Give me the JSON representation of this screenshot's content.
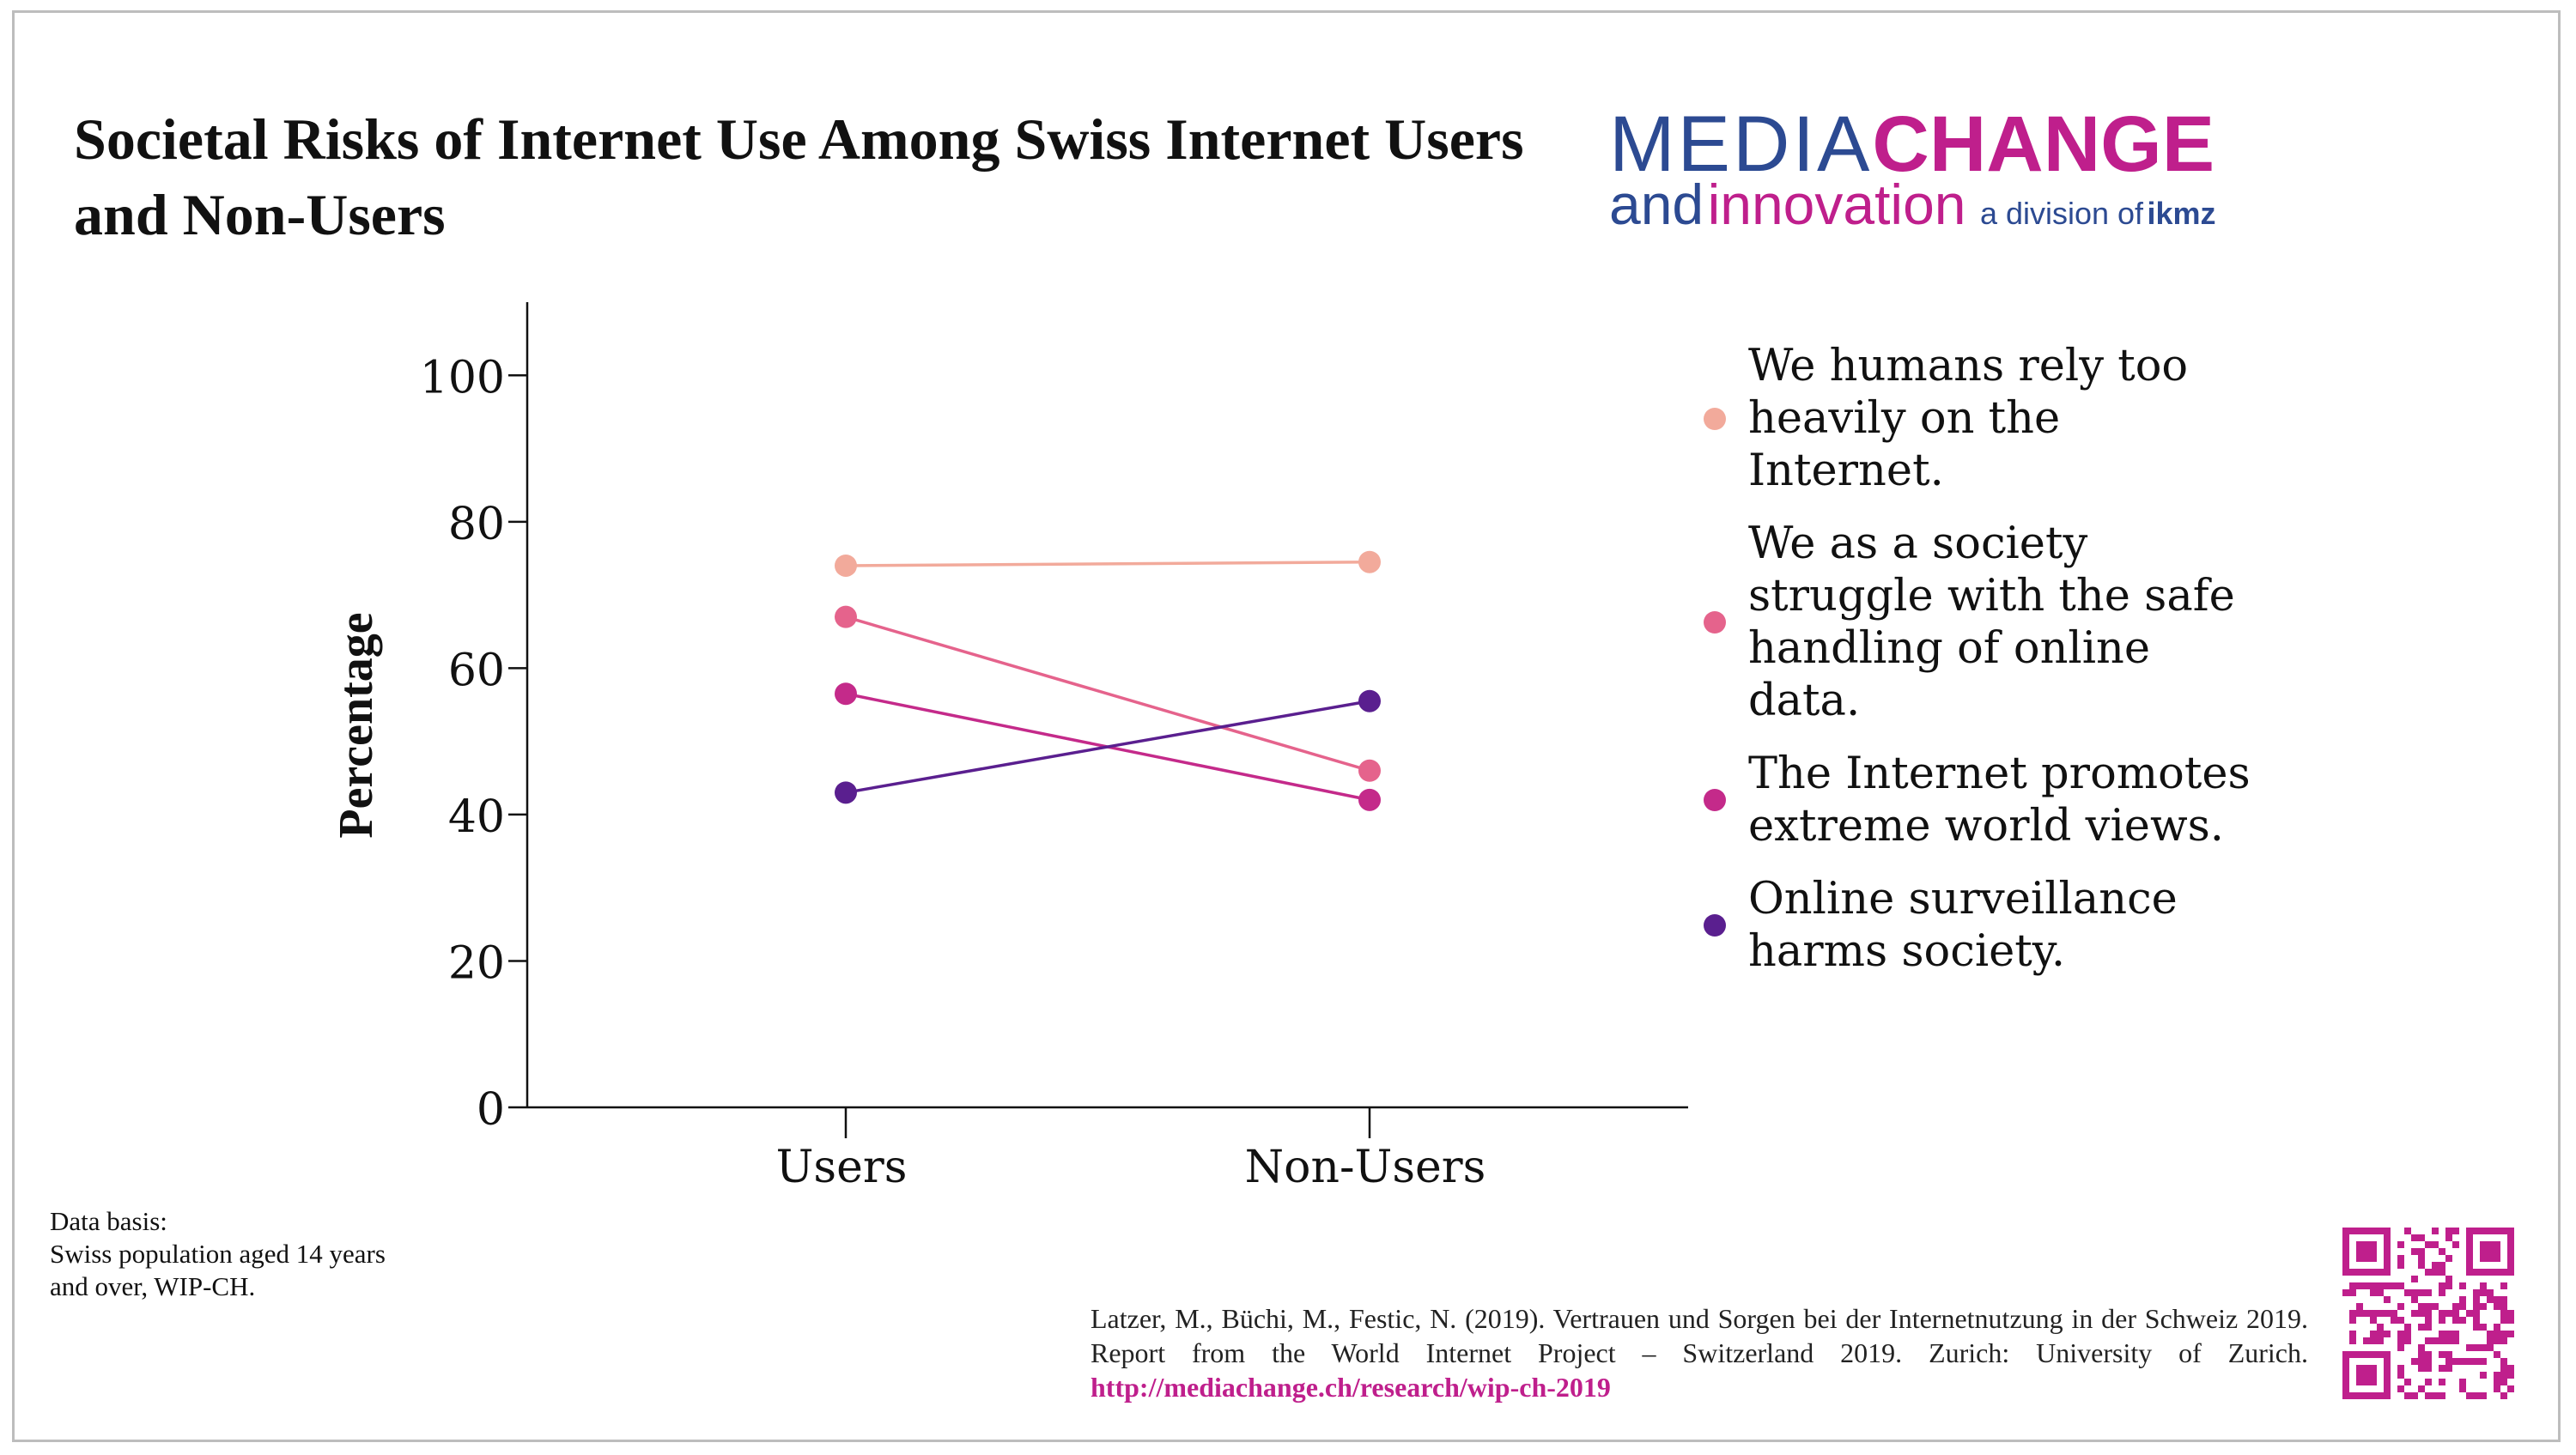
{
  "title": "Societal Risks of Internet Use Among Swiss Internet Users and Non-Users",
  "logo": {
    "line1_a": "MEDIA",
    "line1_b": "CHANGE",
    "line2_a": "and",
    "line2_b": "innovation",
    "division_prefix": "a division of",
    "division_name": "ikmz"
  },
  "colors": {
    "series1": "#f2aa9b",
    "series2": "#e5638c",
    "series3": "#c42a8a",
    "series4": "#5a1f8f",
    "brand_blue": "#2c4a92",
    "brand_magenta": "#bf1f8c"
  },
  "chart_data": {
    "type": "line",
    "title": "Societal Risks of Internet Use Among Swiss Internet Users and Non-Users",
    "xlabel": "",
    "ylabel": "Percentage",
    "categories": [
      "Users",
      "Non-Users"
    ],
    "ylim": [
      0,
      110
    ],
    "yticks": [
      0,
      20,
      40,
      60,
      80,
      100
    ],
    "legend_position": "right",
    "grid": false,
    "series": [
      {
        "name": "We humans rely too heavily on the Internet.",
        "values": [
          74,
          74.5
        ]
      },
      {
        "name": "We as a society struggle with the safe handling of online data.",
        "values": [
          67,
          46
        ]
      },
      {
        "name": "The Internet promotes extreme world views.",
        "values": [
          56.5,
          42
        ]
      },
      {
        "name": "Online surveillance harms society.",
        "values": [
          43,
          55.5
        ]
      }
    ]
  },
  "legend": {
    "items": [
      {
        "lines": [
          "We humans rely too",
          "heavily on the",
          "Internet."
        ]
      },
      {
        "lines": [
          "We as a society",
          "struggle with the safe",
          "handling of online",
          "data."
        ]
      },
      {
        "lines": [
          "The Internet promotes",
          "extreme world views."
        ]
      },
      {
        "lines": [
          "Online surveillance",
          "harms society."
        ]
      }
    ]
  },
  "data_basis": {
    "heading": "Data basis:",
    "text": "Swiss population aged 14 years and over, WIP-CH."
  },
  "citation": {
    "text": "Latzer, M., Büchi, M., Festic, N. (2019). Vertrauen und Sorgen bei der Internetnutzung in der Schweiz 2019. Report from the World Internet Project – Switzerland 2019. Zurich: University of Zurich. ",
    "link": "http://mediachange.ch/research/wip-ch-2019"
  }
}
